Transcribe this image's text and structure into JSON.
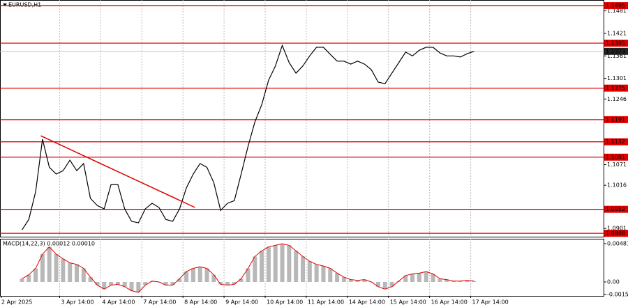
{
  "chart_data": {
    "type": "price-line",
    "title": "EURUSD,H1",
    "xlim": [
      0,
      352
    ],
    "xticks": [
      {
        "value": 0,
        "label": "2 Apr 2025"
      },
      {
        "value": 34,
        "label": "3 Apr 14:00"
      },
      {
        "value": 58,
        "label": "4 Apr 14:00"
      },
      {
        "value": 82,
        "label": "7 Apr 14:00"
      },
      {
        "value": 106,
        "label": "8 Apr 14:00"
      },
      {
        "value": 130,
        "label": "9 Apr 14:00"
      },
      {
        "value": 154,
        "label": "10 Apr 14:00"
      },
      {
        "value": 178,
        "label": "11 Apr 14:00"
      },
      {
        "value": 202,
        "label": "14 Apr 14:00"
      },
      {
        "value": 226,
        "label": "15 Apr 14:00"
      },
      {
        "value": 250,
        "label": "16 Apr 14:00"
      },
      {
        "value": 274,
        "label": "17 Apr 14:00"
      }
    ],
    "ylim": [
      1.0879,
      1.151
    ],
    "yticks": [
      1.1481,
      1.1421,
      1.1361,
      1.1301,
      1.1246,
      1.1071,
      1.1016,
      1.0901
    ],
    "grid": true,
    "price": {
      "color": "#000000",
      "x": [
        12,
        16,
        20,
        24,
        28,
        32,
        36,
        40,
        44,
        48,
        52,
        56,
        60,
        64,
        68,
        72,
        76,
        80,
        84,
        88,
        92,
        96,
        100,
        104,
        108,
        112,
        116,
        120,
        124,
        128,
        132,
        136,
        140,
        144,
        148,
        152,
        156,
        160,
        164,
        168,
        172,
        176,
        180,
        184,
        188,
        192,
        196,
        200,
        204,
        208,
        212,
        216,
        220,
        224,
        228,
        232,
        236,
        240,
        244,
        248,
        252,
        256,
        260,
        264,
        268,
        272,
        276
      ],
      "close": [
        1.0897,
        1.0925,
        1.0999,
        1.1139,
        1.1064,
        1.1046,
        1.1055,
        1.1083,
        1.1055,
        1.1074,
        1.0981,
        1.0962,
        1.0953,
        1.1018,
        1.1018,
        1.0953,
        1.092,
        1.0916,
        1.0953,
        1.0968,
        1.0957,
        1.0925,
        1.092,
        1.0953,
        1.1009,
        1.1046,
        1.1074,
        1.1064,
        1.1023,
        1.0949,
        1.0968,
        1.0975,
        1.1046,
        1.112,
        1.1185,
        1.1231,
        1.1296,
        1.1334,
        1.1389,
        1.1343,
        1.1315,
        1.1334,
        1.1361,
        1.1384,
        1.1384,
        1.1365,
        1.1347,
        1.1347,
        1.1339,
        1.1347,
        1.1339,
        1.1324,
        1.1291,
        1.1287,
        1.1315,
        1.1343,
        1.1371,
        1.1361,
        1.1376,
        1.1384,
        1.1384,
        1.1369,
        1.1361,
        1.1361,
        1.1358,
        1.1367,
        1.1373
      ]
    },
    "levels": {
      "color": "#e00000",
      "values": [
        1.1495,
        1.1395,
        1.1275,
        1.1191,
        1.1132,
        1.1091,
        1.0952,
        1.0888
      ]
    },
    "current_price": 1.1373,
    "trendline": {
      "color": "#e00000",
      "x": [
        23,
        113
      ],
      "y": [
        1.1148,
        1.0957
      ]
    },
    "macd": {
      "label": "MACD(14,22,3) 0.00012 0.00010",
      "hist_color": "#b8b8b8",
      "signal_color": "#e00000",
      "ylim": [
        -0.00175,
        0.00542
      ],
      "yticks": [
        0.00481,
        {
          "value": 0,
          "label": "0.00"
        },
        -0.00158
      ],
      "values": [
        0.0004,
        0.0009,
        0.0017,
        0.0035,
        0.0044,
        0.0035,
        0.0029,
        0.0024,
        0.0022,
        0.0017,
        0.0006,
        -0.0004,
        -0.0009,
        -0.0004,
        -0.0003,
        -0.0006,
        -0.0011,
        -0.0013,
        -0.0004,
        0.0001,
        0,
        -0.0004,
        -0.0004,
        0.0004,
        0.0013,
        0.0017,
        0.0019,
        0.0017,
        0.0009,
        -0.0003,
        -0.0004,
        -0.0003,
        0.0004,
        0.0017,
        0.0032,
        0.0039,
        0.0044,
        0.0046,
        0.0048,
        0.0046,
        0.0039,
        0.0032,
        0.0026,
        0.0022,
        0.002,
        0.0017,
        0.0011,
        0.0006,
        0.0003,
        0.0002,
        0.0003,
        0,
        -0.0006,
        -0.0009,
        -0.0006,
        0.0001,
        0.0008,
        0.001,
        0.0011,
        0.0013,
        0.001,
        0.0004,
        0.0003,
        0.0001,
        0.0001,
        0.0002,
        0.0001
      ]
    }
  }
}
